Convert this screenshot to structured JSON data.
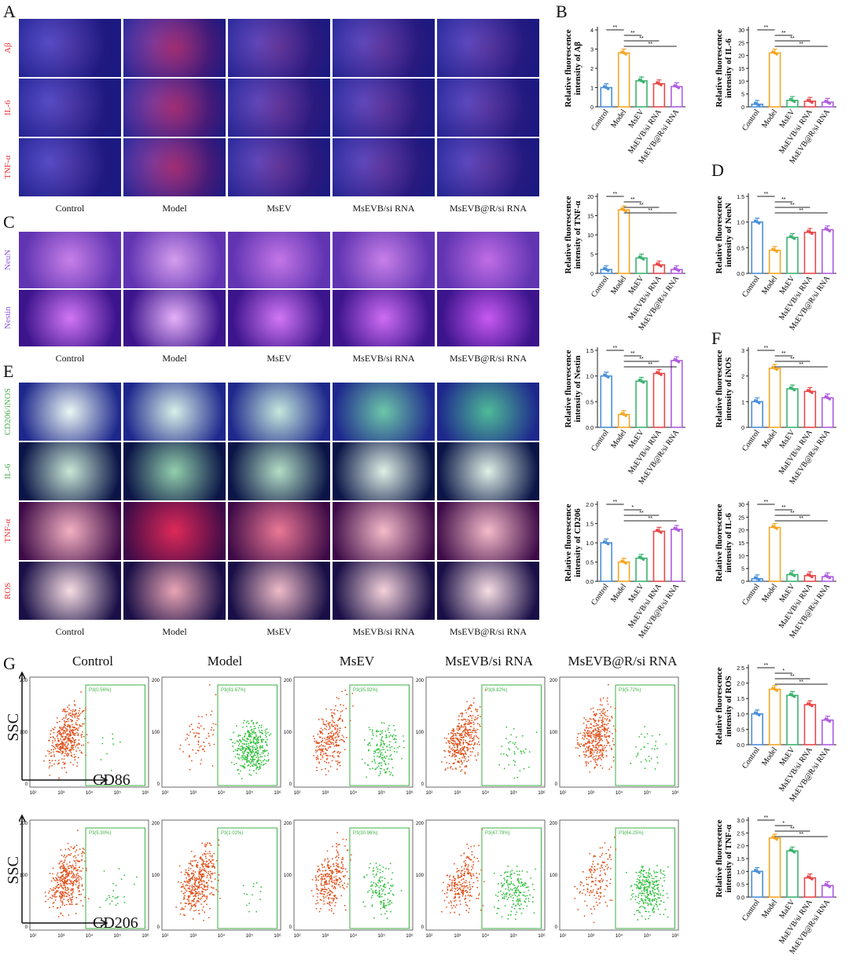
{
  "panel_letters": {
    "A": "A",
    "B": "B",
    "C": "C",
    "D": "D",
    "E": "E",
    "F": "F",
    "G": "G"
  },
  "groups": [
    "Control",
    "Model",
    "MsEV",
    "MsEVB/si RNA",
    "MsEVB@R/si RNA"
  ],
  "chart_groups_1": [
    "Control",
    "Model",
    "MsEV",
    "MsEVB/si RNA",
    "MsEVB@R/si RNA"
  ],
  "chart_groups_2": [
    "Control",
    "Model",
    "MsEV",
    "MaEVB/si RNA",
    "MsEVB@R/si RNA"
  ],
  "panel_A": {
    "rows": [
      "Aβ",
      "IL-6",
      "TNF-α"
    ],
    "row_colors": [
      "#e8323a",
      "#e8323a",
      "#e8323a"
    ],
    "columns": [
      "Control",
      "Model",
      "MsEV",
      "MsEVB/si RNA",
      "MsEVB@R/si RNA"
    ]
  },
  "panel_C": {
    "rows": [
      "NeuN",
      "Nestin"
    ],
    "row_colors": [
      "#8a55d8",
      "#8a55d8"
    ],
    "columns": [
      "Control",
      "Model",
      "MsEV",
      "MsEVB/si RNA",
      "MsEVB@R/si RNA"
    ]
  },
  "panel_E": {
    "rows": [
      "CD206/iNOS",
      "IL-6",
      "TNF-α",
      "ROS"
    ],
    "row_colors": [
      "#4caf50",
      "#4caf50",
      "#e8323a",
      "#e8323a"
    ],
    "columns": [
      "Control",
      "Model",
      "MsEV",
      "MsEVB/si RNA",
      "MsEVB@R/si RNA"
    ]
  },
  "panel_G": {
    "titles": [
      "Control",
      "Model",
      "MsEV",
      "MsEVB/si RNA",
      "MsEVB@R/si RNA"
    ],
    "y_label": "SSC",
    "row1_marker": "CD86",
    "row2_marker": "CD206",
    "row1_gates": [
      "P3(0.56%)",
      "P3(91.67%)",
      "P3(35.92%)",
      "P3(8.82%)",
      "P3(5.72%)"
    ],
    "row2_gates": [
      "P3(5.30%)",
      "P3(1.02%)",
      "P3(30.96%)",
      "P3(47.79%)",
      "P3(64.25%)"
    ],
    "y_ticks": [
      "200",
      "100",
      "0"
    ],
    "x_ticks": [
      "10²",
      "10³",
      "10⁴",
      "10⁵",
      "10⁶"
    ]
  },
  "bar_colors": [
    "#4a90d9",
    "#f5a623",
    "#3cb371",
    "#e8484a",
    "#b05ce0"
  ],
  "chart_data": [
    {
      "type": "bar",
      "panel": "B",
      "ylabel": "Relative fluorescence intensity of Aβ",
      "categories": [
        "Control",
        "Model",
        "MsEV",
        "MsEVB/si RNA",
        "MsEVB@R/si RNA"
      ],
      "values": [
        1.0,
        2.8,
        1.35,
        1.2,
        1.05
      ],
      "ylim": [
        0,
        4
      ],
      "yticks": [
        "0",
        "1",
        "2",
        "3",
        "4"
      ],
      "sig": [
        "**",
        "**",
        "**",
        "**"
      ]
    },
    {
      "type": "bar",
      "panel": "B",
      "ylabel": "Relative fluorescence intensity of IL-6",
      "categories": [
        "Control",
        "Model",
        "MsEV",
        "MsEVB/si RNA",
        "MsEVB@R/si RNA"
      ],
      "values": [
        1.0,
        21,
        2.5,
        2.2,
        1.8
      ],
      "ylim": [
        0,
        30
      ],
      "yticks": [
        "0",
        "5",
        "10",
        "15",
        "20",
        "25",
        "30"
      ],
      "sig": [
        "**",
        "**",
        "**",
        "**"
      ]
    },
    {
      "type": "bar",
      "panel": "B",
      "ylabel": "Relative fluorescence intensity of TNF-α",
      "categories": [
        "Control",
        "Model",
        "MsEV",
        "MsEVB/si RNA",
        "MsEVB@R/si RNA"
      ],
      "values": [
        1.0,
        16.5,
        4.0,
        2.2,
        1.0
      ],
      "ylim": [
        0,
        20
      ],
      "yticks": [
        "0",
        "5",
        "10",
        "15",
        "20"
      ],
      "sig": [
        "**",
        "**",
        "**",
        "**"
      ]
    },
    {
      "type": "bar",
      "panel": "D",
      "ylabel": "Relative fluorescence intensity of NeuN",
      "categories": [
        "Control",
        "Model",
        "MsEV",
        "MsEVB/si RNA",
        "MsEVB@R/si RNA"
      ],
      "values": [
        1.0,
        0.45,
        0.7,
        0.8,
        0.85
      ],
      "ylim": [
        0,
        1.5
      ],
      "yticks": [
        "0.0",
        "0.5",
        "1.0",
        "1.5"
      ],
      "sig": [
        "**",
        "**",
        "**",
        "**"
      ]
    },
    {
      "type": "bar",
      "panel": "D",
      "ylabel": "Relative fluorescence intensity of Nestin",
      "categories": [
        "Control",
        "Model",
        "MsEV",
        "MsEVB/si RNA",
        "MsEVB@R/si RNA"
      ],
      "values": [
        1.0,
        0.25,
        0.9,
        1.05,
        1.3
      ],
      "ylim": [
        0,
        1.5
      ],
      "yticks": [
        "0.0",
        "0.5",
        "1.0",
        "1.5"
      ],
      "sig": [
        "**",
        "**",
        "**",
        "**"
      ]
    },
    {
      "type": "bar",
      "panel": "F",
      "ylabel": "Relative fluorescence intensity of iNOS",
      "categories": [
        "Control",
        "Model",
        "MsEV",
        "MaEVB/si RNA",
        "MsEVB@R/si RNA"
      ],
      "values": [
        1.0,
        2.3,
        1.5,
        1.4,
        1.15
      ],
      "ylim": [
        0,
        3
      ],
      "yticks": [
        "0",
        "1",
        "2",
        "3"
      ],
      "sig": [
        "**",
        "**",
        "**",
        "**"
      ]
    },
    {
      "type": "bar",
      "panel": "F",
      "ylabel": "Relative fluorescence intensity of CD206",
      "categories": [
        "Control",
        "Model",
        "MsEV",
        "MsEVB/si RNA",
        "MsEVB@R/si RNA"
      ],
      "values": [
        1.0,
        0.5,
        0.6,
        1.3,
        1.35
      ],
      "ylim": [
        0,
        2.0
      ],
      "yticks": [
        "0.0",
        "0.5",
        "1.0",
        "1.5",
        "2.0"
      ],
      "sig": [
        "**",
        "*",
        "**",
        "**"
      ]
    },
    {
      "type": "bar",
      "panel": "F",
      "ylabel": "Relative fluorescence intensity of IL-6",
      "categories": [
        "Control",
        "Model",
        "MsEV",
        "MaEVB/si RNA",
        "MsEVB@R/si RNA"
      ],
      "values": [
        1.0,
        21,
        2.6,
        2.2,
        1.8
      ],
      "ylim": [
        0,
        30
      ],
      "yticks": [
        "0",
        "5",
        "10",
        "15",
        "20",
        "25",
        "30"
      ],
      "sig": [
        "**",
        "**",
        "**",
        "**"
      ]
    },
    {
      "type": "bar",
      "panel": "G",
      "ylabel": "Relative fluorescence intensity of ROS",
      "categories": [
        "Control",
        "Model",
        "MsEV",
        "MsEVB/si RNA",
        "MsEVB@R/si RNA"
      ],
      "values": [
        1.0,
        1.8,
        1.6,
        1.3,
        0.8
      ],
      "ylim": [
        0,
        2.5
      ],
      "yticks": [
        "0.0",
        "0.5",
        "1.0",
        "1.5",
        "2.0",
        "2.5"
      ],
      "sig": [
        "**",
        "*",
        "**",
        "**"
      ]
    },
    {
      "type": "bar",
      "panel": "G",
      "ylabel": "Relative fluorescence intensity of TNF-α",
      "categories": [
        "Control",
        "Model",
        "MaEV",
        "MsEVB/si RNA",
        "MsEVB@R/si RNA"
      ],
      "values": [
        1.0,
        2.3,
        1.8,
        0.75,
        0.45
      ],
      "ylim": [
        0,
        3.0
      ],
      "yticks": [
        "0.0",
        "0.5",
        "1.0",
        "1.5",
        "2.0",
        "2.5",
        "3.0"
      ],
      "sig": [
        "**",
        "*",
        "**",
        "**"
      ]
    }
  ]
}
